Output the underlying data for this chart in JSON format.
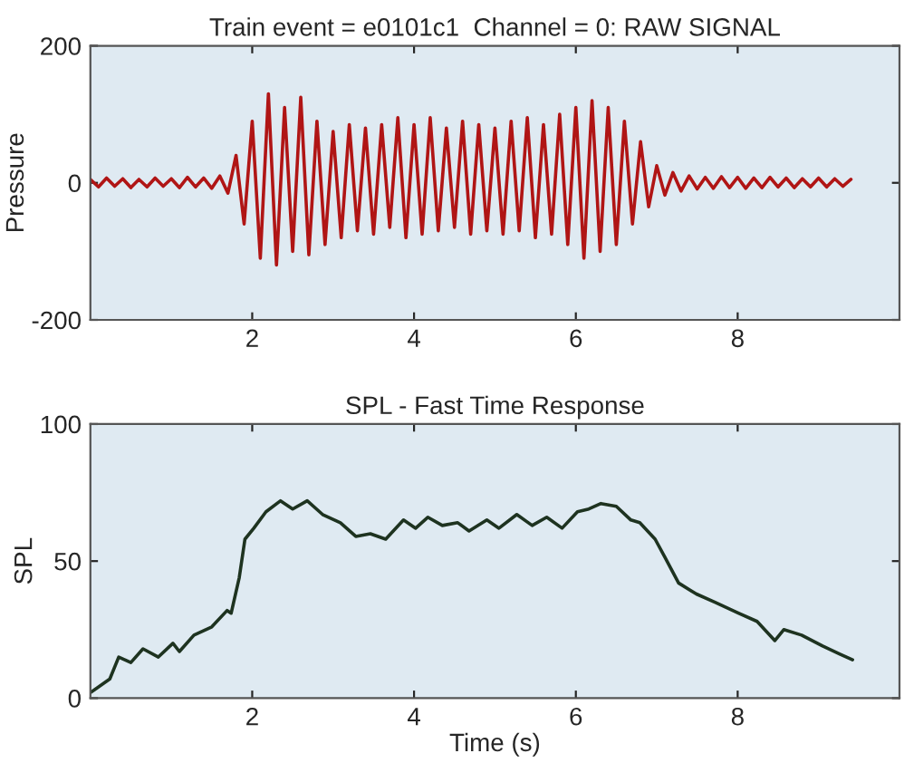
{
  "chart_data": [
    {
      "type": "line",
      "title": "Train event = e0101c1  Channel = 0: RAW SIGNAL",
      "ylabel": "Pressure",
      "xlim": [
        0,
        10
      ],
      "ylim": [
        -200,
        200
      ],
      "xticks": [
        2,
        4,
        6,
        8
      ],
      "yticks": [
        -200,
        0,
        200
      ],
      "grid": false,
      "legend": false,
      "series": [
        {
          "color": "#b01515",
          "x": [
            0.0,
            0.1,
            0.2,
            0.3,
            0.4,
            0.5,
            0.6,
            0.7,
            0.8,
            0.9,
            1.0,
            1.1,
            1.2,
            1.3,
            1.4,
            1.5,
            1.6,
            1.7,
            1.8,
            1.9,
            2.0,
            2.1,
            2.2,
            2.3,
            2.4,
            2.5,
            2.6,
            2.7,
            2.8,
            2.9,
            3.0,
            3.1,
            3.2,
            3.3,
            3.4,
            3.5,
            3.6,
            3.7,
            3.8,
            3.9,
            4.0,
            4.1,
            4.2,
            4.3,
            4.4,
            4.5,
            4.6,
            4.7,
            4.8,
            4.9,
            5.0,
            5.1,
            5.2,
            5.3,
            5.4,
            5.5,
            5.6,
            5.7,
            5.8,
            5.9,
            6.0,
            6.1,
            6.2,
            6.3,
            6.4,
            6.5,
            6.6,
            6.7,
            6.8,
            6.9,
            7.0,
            7.1,
            7.2,
            7.3,
            7.4,
            7.5,
            7.6,
            7.7,
            7.8,
            7.9,
            8.0,
            8.1,
            8.2,
            8.3,
            8.4,
            8.5,
            8.6,
            8.7,
            8.8,
            8.9,
            9.0,
            9.1,
            9.2,
            9.3,
            9.4
          ],
          "values": [
            5,
            -6,
            7,
            -5,
            6,
            -7,
            5,
            -6,
            7,
            -5,
            6,
            -7,
            8,
            -6,
            7,
            -8,
            10,
            -15,
            40,
            -60,
            90,
            -110,
            130,
            -120,
            110,
            -100,
            125,
            -105,
            90,
            -90,
            75,
            -80,
            85,
            -70,
            80,
            -75,
            85,
            -65,
            95,
            -80,
            85,
            -75,
            95,
            -70,
            80,
            -65,
            90,
            -75,
            85,
            -70,
            80,
            -75,
            90,
            -70,
            95,
            -80,
            85,
            -75,
            100,
            -90,
            110,
            -110,
            120,
            -100,
            110,
            -90,
            90,
            -60,
            60,
            -35,
            25,
            -18,
            15,
            -12,
            10,
            -9,
            8,
            -8,
            9,
            -7,
            8,
            -8,
            7,
            -7,
            8,
            -6,
            7,
            -7,
            6,
            -6,
            7,
            -6,
            6,
            -5,
            5
          ]
        }
      ]
    },
    {
      "type": "line",
      "title": "SPL - Fast Time Response",
      "xlabel": "Time (s)",
      "ylabel": "SPL",
      "xlim": [
        0,
        10
      ],
      "ylim": [
        0,
        100
      ],
      "xticks": [
        2,
        4,
        6,
        8
      ],
      "yticks": [
        0,
        50,
        100
      ],
      "grid": false,
      "legend": false,
      "series": [
        {
          "color": "#1e3320",
          "x": [
            0,
            0.24,
            0.35,
            0.5,
            0.65,
            0.84,
            1.02,
            1.1,
            1.28,
            1.5,
            1.69,
            1.74,
            1.84,
            1.91,
            2.02,
            2.17,
            2.35,
            2.5,
            2.68,
            2.87,
            3.09,
            3.28,
            3.46,
            3.65,
            3.87,
            4.02,
            4.17,
            4.35,
            4.54,
            4.68,
            4.9,
            5.05,
            5.27,
            5.46,
            5.64,
            5.83,
            6.02,
            6.16,
            6.31,
            6.5,
            6.68,
            6.79,
            6.98,
            7.09,
            7.27,
            7.49,
            7.72,
            8.01,
            8.24,
            8.46,
            8.57,
            8.79,
            9.05,
            9.27,
            9.42
          ],
          "values": [
            2,
            7,
            15,
            13,
            18,
            15,
            20,
            17,
            23,
            26,
            32,
            31,
            44,
            58,
            62,
            68,
            72,
            69,
            72,
            67,
            64,
            59,
            60,
            58,
            65,
            62,
            66,
            63,
            64,
            61,
            65,
            62,
            67,
            63,
            66,
            62,
            68,
            69,
            71,
            70,
            65,
            64,
            58,
            52,
            42,
            38,
            35,
            31,
            28,
            21,
            25,
            23,
            19,
            16,
            14
          ]
        }
      ]
    }
  ]
}
